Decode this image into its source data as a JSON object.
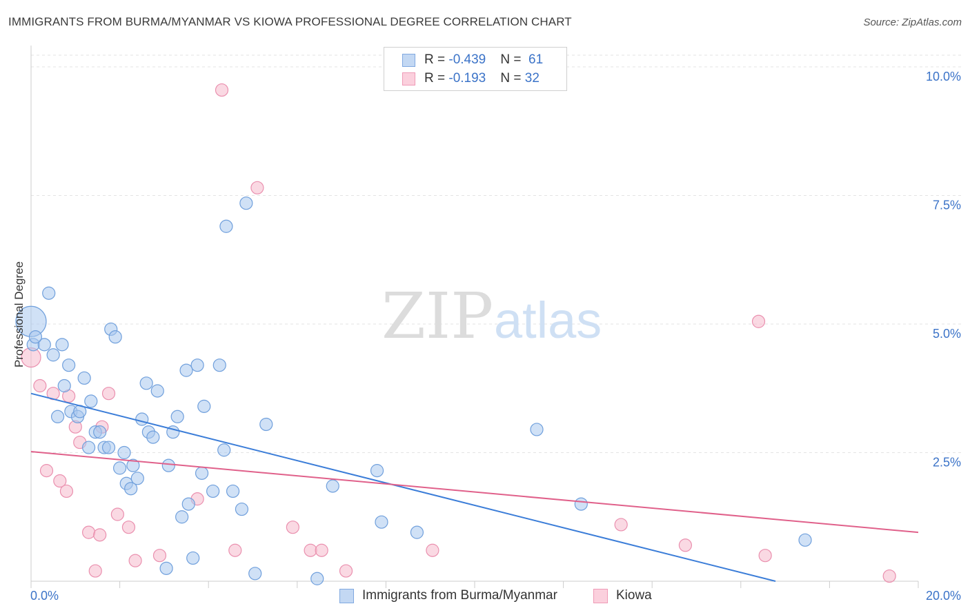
{
  "title": "IMMIGRANTS FROM BURMA/MYANMAR VS KIOWA PROFESSIONAL DEGREE CORRELATION CHART",
  "source": "Source: ZipAtlas.com",
  "watermark": {
    "zip": "ZIP",
    "atlas": "atlas"
  },
  "legend": {
    "rows": [
      {
        "r_label": "R = ",
        "r_value": "-0.439",
        "n_label": "N = ",
        "n_value": "61"
      },
      {
        "r_label": "R = ",
        "r_value": "-0.193",
        "n_label": "N = ",
        "n_value": "32"
      }
    ]
  },
  "chart_data": {
    "type": "scatter",
    "title": "IMMIGRANTS FROM BURMA/MYANMAR VS KIOWA PROFESSIONAL DEGREE CORRELATION CHART",
    "xlabel": "",
    "ylabel": "Professional Degree",
    "xlim": [
      0,
      20
    ],
    "ylim": [
      0,
      10
    ],
    "x_tick_labels": [
      "0.0%",
      "20.0%"
    ],
    "y_ticks": [
      2.5,
      5.0,
      7.5,
      10.0
    ],
    "y_tick_labels": [
      "2.5%",
      "5.0%",
      "7.5%",
      "10.0%"
    ],
    "grid": true,
    "legend_position": "top-center",
    "colors": {
      "blue_fill": "#a9c8ee",
      "blue_line": "#3b7dd8",
      "pink_fill": "#f5b9cc",
      "pink_line": "#e0608a",
      "tick_text": "#3b73c8"
    },
    "series": [
      {
        "name": "Immigrants from Burma/Myanmar",
        "color": "#3b7dd8",
        "r": -0.439,
        "n": 61,
        "trend": {
          "x": [
            0,
            20
          ],
          "y": [
            3.65,
            -0.7
          ]
        },
        "points": [
          [
            0.0,
            5.05
          ],
          [
            0.05,
            4.6
          ],
          [
            0.3,
            4.6
          ],
          [
            0.4,
            5.6
          ],
          [
            0.5,
            4.4
          ],
          [
            0.7,
            4.6
          ],
          [
            0.6,
            3.2
          ],
          [
            0.75,
            3.8
          ],
          [
            0.85,
            4.2
          ],
          [
            0.9,
            3.3
          ],
          [
            1.05,
            3.2
          ],
          [
            1.1,
            3.3
          ],
          [
            1.2,
            3.95
          ],
          [
            1.3,
            2.6
          ],
          [
            1.35,
            3.5
          ],
          [
            1.45,
            2.9
          ],
          [
            1.55,
            2.9
          ],
          [
            1.65,
            2.6
          ],
          [
            1.75,
            2.6
          ],
          [
            1.8,
            4.9
          ],
          [
            1.9,
            4.75
          ],
          [
            2.0,
            2.2
          ],
          [
            2.1,
            2.5
          ],
          [
            2.15,
            1.9
          ],
          [
            2.25,
            1.8
          ],
          [
            2.3,
            2.25
          ],
          [
            2.4,
            2.0
          ],
          [
            2.5,
            3.15
          ],
          [
            2.6,
            3.85
          ],
          [
            2.65,
            2.9
          ],
          [
            2.75,
            2.8
          ],
          [
            2.85,
            3.7
          ],
          [
            3.05,
            0.25
          ],
          [
            3.1,
            2.25
          ],
          [
            3.2,
            2.9
          ],
          [
            3.3,
            3.2
          ],
          [
            3.4,
            1.25
          ],
          [
            3.5,
            4.1
          ],
          [
            3.55,
            1.5
          ],
          [
            3.65,
            0.45
          ],
          [
            3.75,
            4.2
          ],
          [
            3.85,
            2.1
          ],
          [
            3.9,
            3.4
          ],
          [
            4.1,
            1.75
          ],
          [
            4.25,
            4.2
          ],
          [
            4.35,
            2.55
          ],
          [
            4.4,
            6.9
          ],
          [
            4.55,
            1.75
          ],
          [
            4.75,
            1.4
          ],
          [
            4.85,
            7.35
          ],
          [
            5.05,
            0.15
          ],
          [
            5.3,
            3.05
          ],
          [
            6.45,
            0.05
          ],
          [
            6.8,
            1.85
          ],
          [
            7.8,
            2.15
          ],
          [
            7.9,
            1.15
          ],
          [
            8.7,
            0.95
          ],
          [
            11.4,
            2.95
          ],
          [
            12.4,
            1.5
          ],
          [
            17.45,
            0.8
          ],
          [
            0.1,
            4.75
          ]
        ]
      },
      {
        "name": "Kiowa",
        "color": "#e0608a",
        "r": -0.193,
        "n": 32,
        "trend": {
          "x": [
            0,
            20
          ],
          "y": [
            2.52,
            0.95
          ]
        },
        "points": [
          [
            0.0,
            4.35
          ],
          [
            0.2,
            3.8
          ],
          [
            0.35,
            2.15
          ],
          [
            0.5,
            3.65
          ],
          [
            0.65,
            1.95
          ],
          [
            0.8,
            1.75
          ],
          [
            0.85,
            3.6
          ],
          [
            1.0,
            3.0
          ],
          [
            1.1,
            2.7
          ],
          [
            1.3,
            0.95
          ],
          [
            1.45,
            0.2
          ],
          [
            1.55,
            0.9
          ],
          [
            1.6,
            3.0
          ],
          [
            1.75,
            3.65
          ],
          [
            1.95,
            1.3
          ],
          [
            2.2,
            1.05
          ],
          [
            2.35,
            0.4
          ],
          [
            2.9,
            0.5
          ],
          [
            3.75,
            1.6
          ],
          [
            4.3,
            9.55
          ],
          [
            4.6,
            0.6
          ],
          [
            5.1,
            7.65
          ],
          [
            5.9,
            1.05
          ],
          [
            6.3,
            0.6
          ],
          [
            6.55,
            0.6
          ],
          [
            7.1,
            0.2
          ],
          [
            9.05,
            0.6
          ],
          [
            13.3,
            1.1
          ],
          [
            14.75,
            0.7
          ],
          [
            16.4,
            5.05
          ],
          [
            16.55,
            0.5
          ],
          [
            19.35,
            0.1
          ]
        ]
      }
    ]
  }
}
